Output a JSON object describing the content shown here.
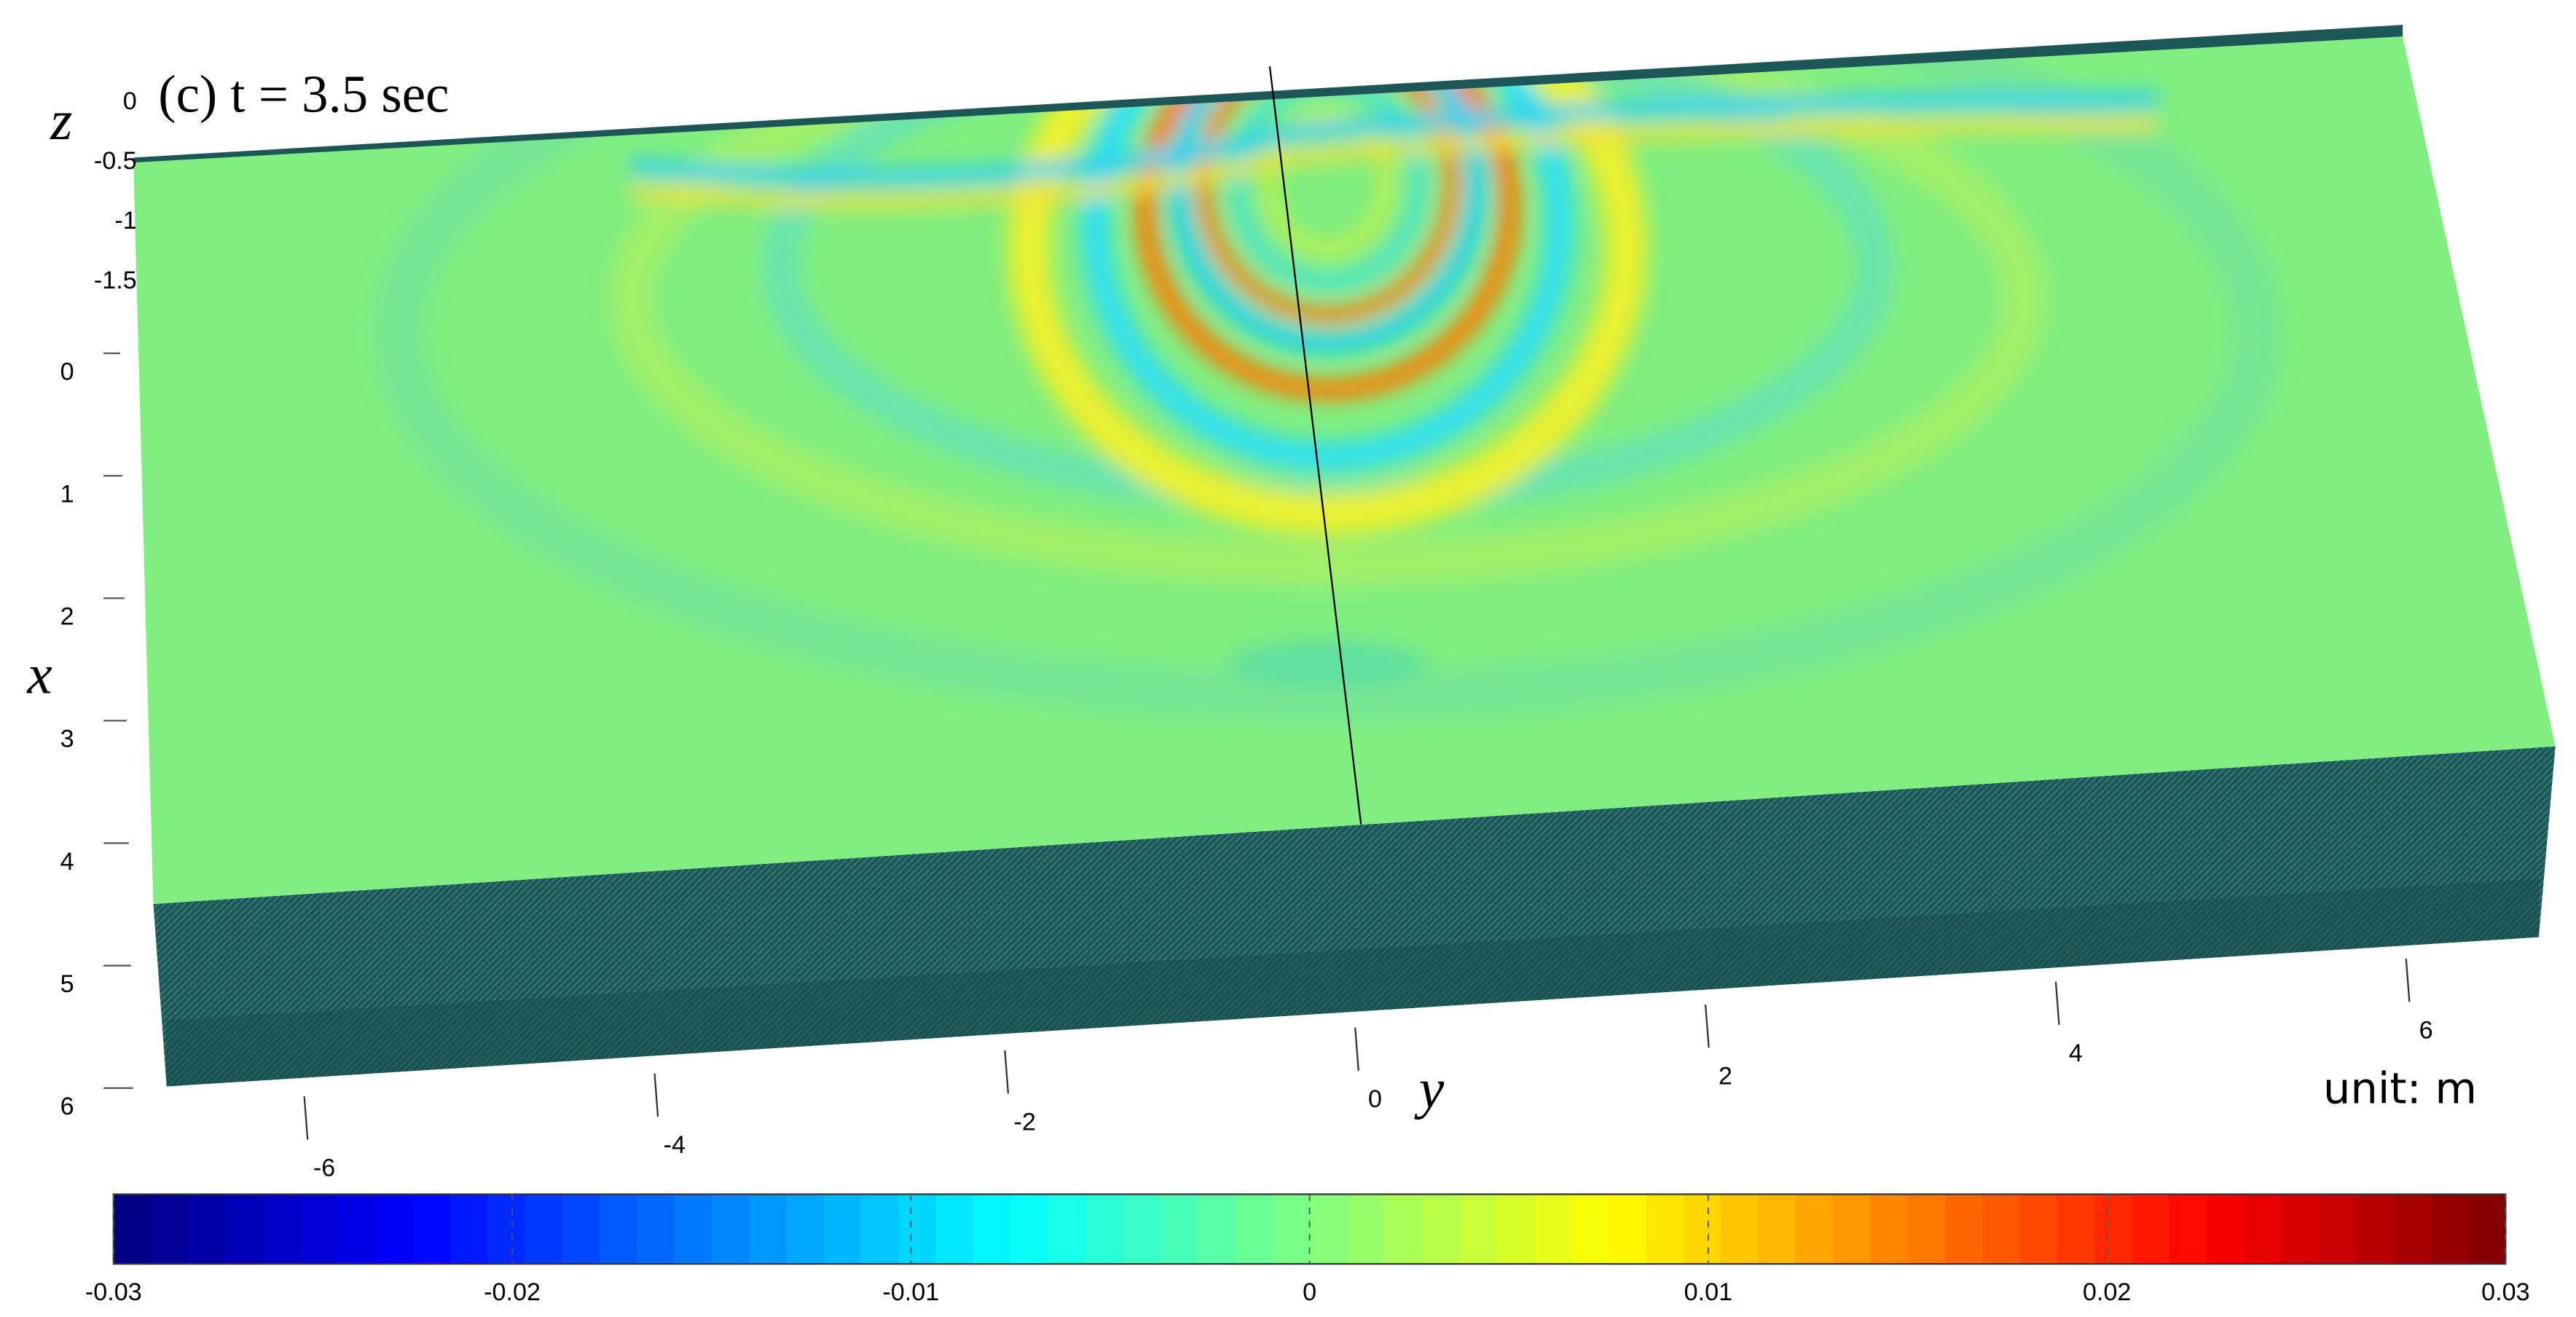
{
  "chart_data": {
    "type": "surface",
    "title": "(c) t = 3.5 sec",
    "xlabel": "x",
    "ylabel": "y",
    "zlabel": "z",
    "unit_note": "unit: m",
    "xlim": [
      0,
      6
    ],
    "xticks": [
      0,
      1,
      2,
      3,
      4,
      5,
      6
    ],
    "ylim": [
      -6,
      6
    ],
    "yticks": [
      -6,
      -4,
      -2,
      0,
      2,
      4,
      6
    ],
    "zlim": [
      0,
      -1.5
    ],
    "zticks": [
      0,
      -0.5,
      -1,
      -1.5
    ],
    "clim": [
      -0.03,
      0.03
    ],
    "cticks": [
      -0.03,
      -0.02,
      -0.01,
      0,
      0.01,
      0.02,
      0.03
    ],
    "colormap": "jet"
  }
}
